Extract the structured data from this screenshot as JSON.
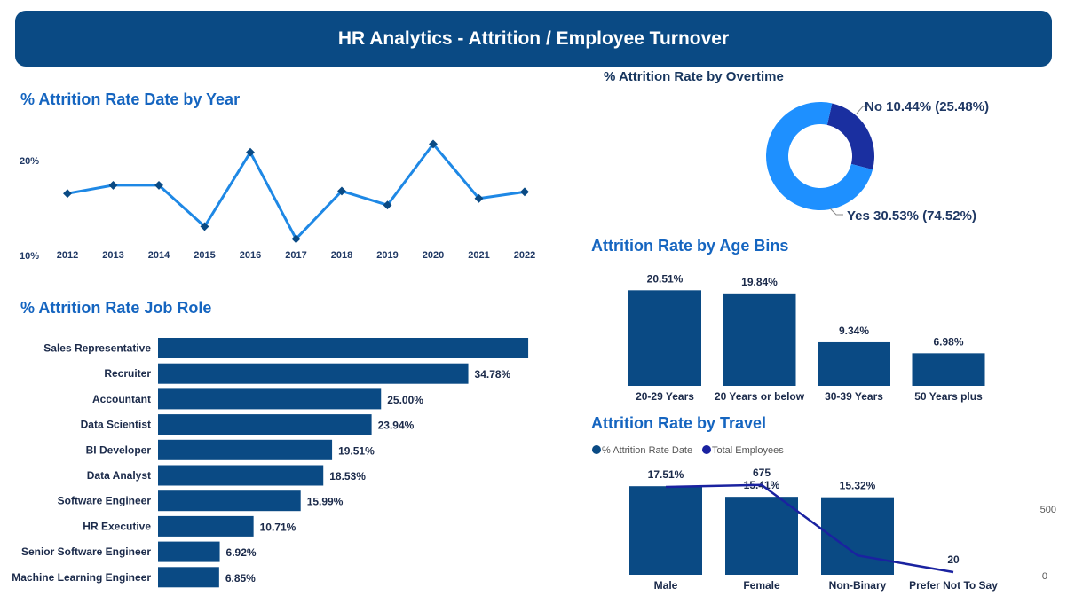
{
  "header": {
    "title": "HR Analytics - Attrition / Employee Turnover"
  },
  "colors": {
    "banner": "#0a4a84",
    "bar": "#0a4a84",
    "line": "#1e88e5",
    "title": "#1565c0",
    "donut_yes": "#1e90ff",
    "donut_no": "#1a2fa0",
    "overlay_line": "#1a22a0"
  },
  "year_chart": {
    "title": "% Attrition Rate Date by Year",
    "chart_data": {
      "type": "line",
      "x": [
        "2012",
        "2013",
        "2014",
        "2015",
        "2016",
        "2017",
        "2018",
        "2019",
        "2020",
        "2021",
        "2022"
      ],
      "values": [
        16,
        17,
        17,
        12,
        21,
        10.5,
        16.3,
        14.6,
        22,
        15.4,
        16.2
      ],
      "yticks": [
        "10%",
        "20%"
      ],
      "ylim": [
        10,
        22
      ]
    }
  },
  "job_chart": {
    "title": "% Attrition Rate Job Role",
    "chart_data": {
      "type": "bar",
      "categories": [
        "Sales Representative",
        "Recruiter",
        "Accountant",
        "Data Scientist",
        "BI Developer",
        "Data Analyst",
        "Software Engineer",
        "HR Executive",
        "Senior Software Engineer",
        "Machine Learning Engineer"
      ],
      "values": [
        41.5,
        34.78,
        25.0,
        23.94,
        19.51,
        18.53,
        15.99,
        10.71,
        6.92,
        6.85
      ],
      "labels": [
        "",
        "34.78%",
        "25.00%",
        "23.94%",
        "19.51%",
        "18.53%",
        "15.99%",
        "10.71%",
        "6.92%",
        "6.85%"
      ]
    }
  },
  "overtime_chart": {
    "title": "% Attrition Rate by Overtime",
    "chart_data": {
      "type": "pie",
      "slices": [
        {
          "name": "No",
          "value": 25.48,
          "label": "No 10.44% (25.48%)"
        },
        {
          "name": "Yes",
          "value": 74.52,
          "label": "Yes 30.53% (74.52%)"
        }
      ]
    }
  },
  "age_chart": {
    "title": "Attrition Rate by Age Bins",
    "chart_data": {
      "type": "bar",
      "categories": [
        "20-29 Years",
        "20 Years or below",
        "30-39 Years",
        "50 Years plus"
      ],
      "values": [
        20.51,
        19.84,
        9.34,
        6.98
      ],
      "labels": [
        "20.51%",
        "19.84%",
        "9.34%",
        "6.98%"
      ]
    }
  },
  "travel_chart": {
    "title": "Attrition Rate by Travel",
    "chart_data": {
      "type": "bar",
      "categories": [
        "Male",
        "Female",
        "Non-Binary",
        "Prefer Not To Say"
      ],
      "series": [
        {
          "name": "% Attrition Rate Date",
          "values": [
            17.51,
            15.41,
            15.32,
            0
          ],
          "labels": [
            "17.51%",
            "15.41%",
            "15.32%",
            ""
          ]
        },
        {
          "name": "Total Employees",
          "values": [
            660,
            675,
            145,
            20
          ],
          "labels": [
            "",
            "675",
            "",
            "20"
          ]
        }
      ],
      "secondary_yticks": [
        "0",
        "500"
      ],
      "legend": "top-left"
    }
  }
}
